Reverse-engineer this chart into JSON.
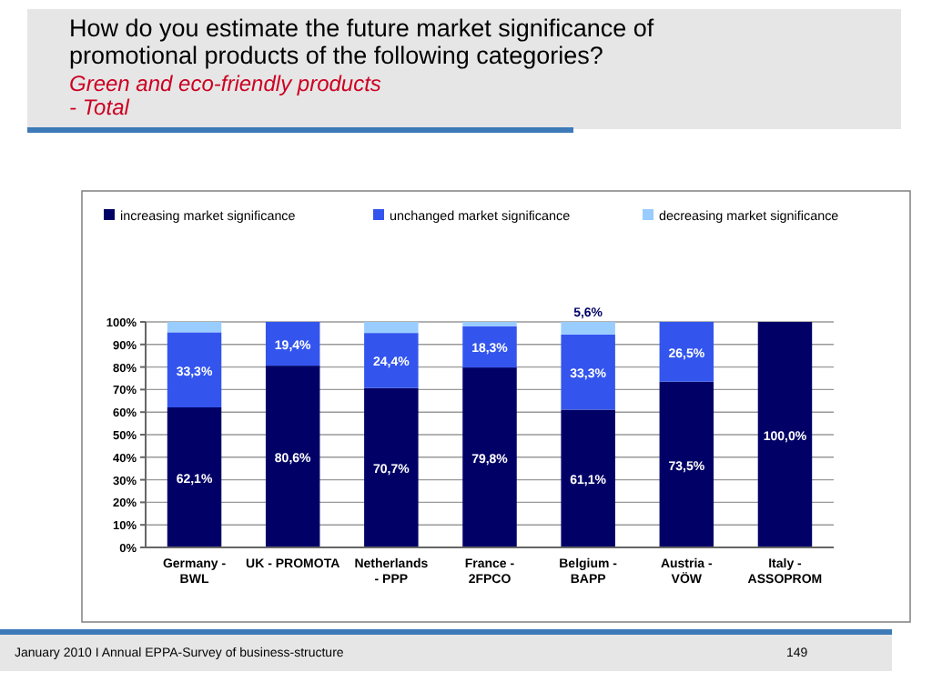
{
  "chart_data": {
    "type": "bar",
    "stacked": true,
    "title": "How do you estimate the future market significance of promotional products of the following categories?",
    "subtitle": "Green and eco-friendly products - Total",
    "categories": [
      "Germany - BWL",
      "UK - PROMOTA",
      "Netherlands - PPP",
      "France - 2FPCO",
      "Belgium - BAPP",
      "Austria - VÖW",
      "Italy - ASSOPROM"
    ],
    "series": [
      {
        "name": "increasing market significance",
        "color": "#000066",
        "values": [
          62.1,
          80.6,
          70.7,
          79.8,
          61.1,
          73.5,
          100
        ],
        "value_labels": [
          "62,1%",
          "80,6%",
          "70,7%",
          "79,8%",
          "61,1%",
          "73,5%",
          "100,0%"
        ]
      },
      {
        "name": "unchanged market significance",
        "color": "#3355ee",
        "values": [
          33.3,
          19.4,
          24.4,
          18.3,
          33.3,
          26.5,
          0
        ],
        "value_labels": [
          "33,3%",
          "19,4%",
          "24,4%",
          "18,3%",
          "33,3%",
          "26,5%",
          null
        ]
      },
      {
        "name": "decreasing market significance",
        "color": "#99ccff",
        "values": [
          4.6,
          0,
          4.9,
          1.9,
          5.6,
          0,
          0
        ],
        "value_labels": [
          null,
          null,
          null,
          null,
          "5,6%",
          null,
          null
        ]
      }
    ],
    "ylim": [
      0,
      100
    ],
    "yticks": [
      {
        "value": 0,
        "label": "0%"
      },
      {
        "value": 10,
        "label": "10%"
      },
      {
        "value": 20,
        "label": "20%"
      },
      {
        "value": 30,
        "label": "30%"
      },
      {
        "value": 40,
        "label": "40%"
      },
      {
        "value": 50,
        "label": "50%"
      },
      {
        "value": 60,
        "label": "60%"
      },
      {
        "value": 70,
        "label": "70%"
      },
      {
        "value": 80,
        "label": "80%"
      },
      {
        "value": 90,
        "label": "90%"
      },
      {
        "value": 100,
        "label": "100%"
      }
    ],
    "grid": "y",
    "legend": "top",
    "annotations": [
      "January 2010 I Annual EPPA-Survey of business-structure",
      "149"
    ]
  }
}
